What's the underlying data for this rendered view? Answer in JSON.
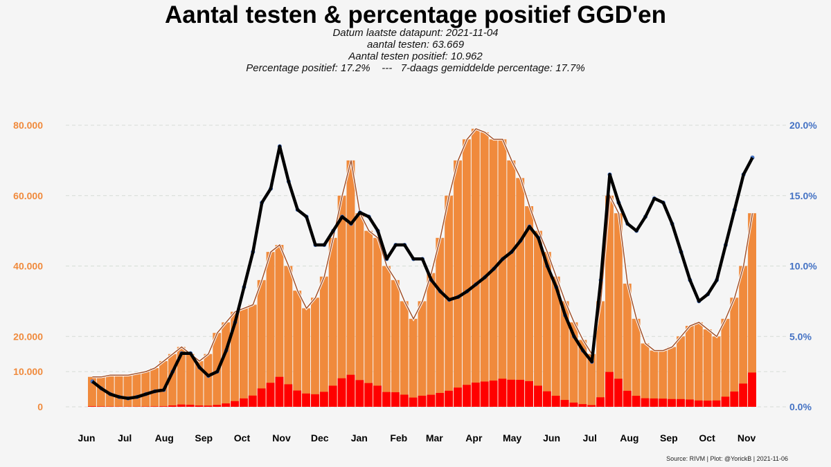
{
  "title": "Aantal testen & percentage positief GGD'en",
  "subtitle": {
    "line1": "Datum laatste datapunt: 2021-11-04",
    "line2": "aantal testen: 63.669",
    "line3": "Aantal testen positief: 10.962",
    "line4": "Percentage positief: 17.2%    ---   7-daags gemiddelde percentage: 17.7%"
  },
  "footer": "Source: RIVM | Plot: @YorickB |  2021-11-06",
  "colors": {
    "tests": "#F08A3C",
    "positive": "#FF0000",
    "tests_avg": "#A0522D",
    "pct": "#4472C4",
    "pct_avg": "#000000",
    "left_axis": "#F08A3C",
    "right_axis": "#4472C4"
  },
  "chart_data": {
    "type": "bar",
    "title": "Aantal testen & percentage positief GGD'en",
    "x_unit": "week starting",
    "start_date": "2020-06-01",
    "x_tick_labels": [
      "Jun",
      "Jul",
      "Aug",
      "Sep",
      "Oct",
      "Nov",
      "Dec",
      "Jan",
      "Feb",
      "Mar",
      "Apr",
      "May",
      "Jun",
      "Jul",
      "Aug",
      "Sep",
      "Oct",
      "Nov"
    ],
    "x_tick_days": [
      0,
      30,
      61,
      92,
      122,
      153,
      183,
      214,
      245,
      273,
      304,
      334,
      365,
      395,
      426,
      457,
      487,
      518
    ],
    "y_left": {
      "ylim": [
        0,
        80000
      ],
      "ticks": [
        0,
        10000,
        20000,
        40000,
        60000,
        80000
      ],
      "tick_labels": [
        "0",
        "10.000",
        "20.000",
        "40.000",
        "60.000",
        "80.000"
      ]
    },
    "y_right": {
      "ylim": [
        0,
        20
      ],
      "ticks": [
        0,
        5,
        10,
        15,
        20
      ],
      "tick_labels": [
        "0.0%",
        "5.0%",
        "10.0%",
        "15.0%",
        "20.0%"
      ]
    },
    "grid": true,
    "series": [
      {
        "name": "aantal testen",
        "type": "bar",
        "axis": "left",
        "values": [
          8500,
          8500,
          9000,
          9000,
          9000,
          9500,
          10000,
          11000,
          13000,
          15000,
          17000,
          15000,
          13000,
          15000,
          21000,
          24000,
          27000,
          28000,
          29000,
          36000,
          44000,
          46000,
          40000,
          33000,
          28000,
          31000,
          37000,
          48000,
          60000,
          70000,
          55000,
          50000,
          48000,
          40000,
          36000,
          30000,
          25000,
          30000,
          38000,
          48000,
          60000,
          70000,
          76000,
          79000,
          78000,
          76000,
          76000,
          70000,
          65000,
          57000,
          50000,
          44000,
          37000,
          30000,
          24000,
          19000,
          15000,
          30000,
          60000,
          55000,
          35000,
          25000,
          18000,
          16000,
          16000,
          17000,
          20000,
          23000,
          24000,
          22000,
          20000,
          25000,
          31000,
          40000,
          55000
        ]
      },
      {
        "name": "testen positief",
        "type": "bar",
        "axis": "left",
        "values": [
          153,
          110,
          81,
          63,
          54,
          67,
          90,
          121,
          156,
          375,
          646,
          570,
          364,
          330,
          525,
          960,
          1620,
          2380,
          3190,
          5220,
          6820,
          8510,
          6400,
          4620,
          3780,
          3565,
          4255,
          6000,
          8100,
          9100,
          7590,
          6750,
          6000,
          4200,
          4140,
          3450,
          2625,
          3150,
          3420,
          3936,
          4560,
          5460,
          6232,
          6873,
          7176,
          7448,
          7980,
          7700,
          7670,
          7296,
          6000,
          4400,
          3145,
          1950,
          1200,
          760,
          480,
          2700,
          9900,
          7975,
          4550,
          3125,
          2430,
          2368,
          2320,
          2210,
          2200,
          2070,
          1800,
          1760,
          1800,
          2875,
          4340,
          6600,
          9735
        ]
      },
      {
        "name": "percentage positief",
        "type": "line",
        "axis": "right",
        "values": [
          1.8,
          1.3,
          0.9,
          0.7,
          0.6,
          0.7,
          0.9,
          1.1,
          1.2,
          2.5,
          3.8,
          3.8,
          2.8,
          2.2,
          2.5,
          4,
          6,
          8.5,
          11,
          14.5,
          15.5,
          18.5,
          16,
          14,
          13.5,
          11.5,
          11.5,
          12.5,
          13.5,
          13,
          13.8,
          13.5,
          12.5,
          10.5,
          11.5,
          11.5,
          10.5,
          10.5,
          9,
          8.2,
          7.6,
          7.8,
          8.2,
          8.7,
          9.2,
          9.8,
          10.5,
          11,
          11.8,
          12.8,
          12,
          10,
          8.5,
          6.5,
          5,
          4,
          3.2,
          9,
          16.5,
          14.5,
          13,
          12.5,
          13.5,
          14.8,
          14.5,
          13,
          11,
          9,
          7.5,
          8,
          9,
          11.5,
          14,
          16.5,
          17.7
        ]
      }
    ]
  }
}
